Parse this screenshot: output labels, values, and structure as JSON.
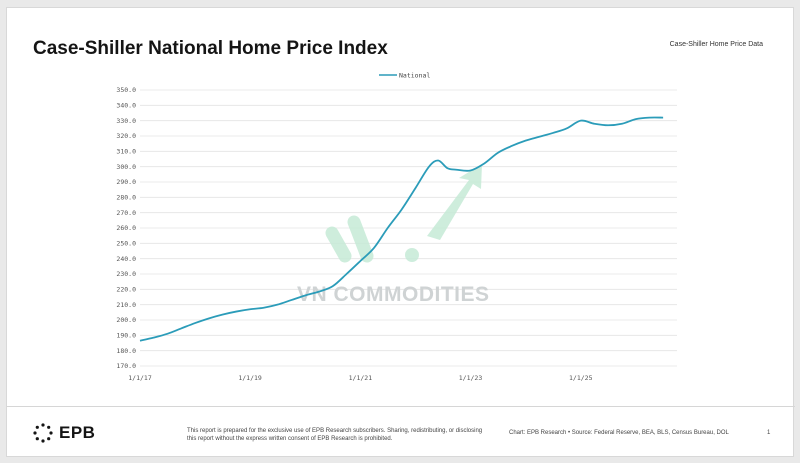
{
  "header": {
    "title": "Case-Shiller National Home Price Index",
    "subtitle": "Case-Shiller Home Price Data"
  },
  "watermark": {
    "text": "VN COMMODITIES"
  },
  "footer": {
    "logo_text": "EPB",
    "disclaimer": "This report is prepared for the exclusive use of EPB Research subscribers. Sharing, redistributing, or disclosing this report without the express written consent of EPB Research is prohibited.",
    "source": "Chart: EPB Research  •  Source: Federal Reserve, BEA, BLS, Census Bureau, DOL",
    "page_number": "1"
  },
  "colors": {
    "line": "#2b9cb9",
    "grid": "#e4e4e4",
    "watermark": "#c6ead7"
  },
  "chart_data": {
    "type": "line",
    "title": "",
    "xlabel": "",
    "ylabel": "",
    "ylim": [
      170,
      350
    ],
    "xlim": [
      "2017-01-01",
      "2026-10-01"
    ],
    "grid": true,
    "legend_position": "top-center",
    "y_ticks": [
      "170.0",
      "180.0",
      "190.0",
      "200.0",
      "210.0",
      "220.0",
      "230.0",
      "240.0",
      "250.0",
      "260.0",
      "270.0",
      "280.0",
      "290.0",
      "300.0",
      "310.0",
      "320.0",
      "330.0",
      "340.0",
      "350.0"
    ],
    "x_ticks": [
      {
        "label": "1/1/17",
        "date": "2017-01-01"
      },
      {
        "label": "1/1/19",
        "date": "2019-01-01"
      },
      {
        "label": "1/1/21",
        "date": "2021-01-01"
      },
      {
        "label": "1/1/23",
        "date": "2023-01-01"
      },
      {
        "label": "1/1/25",
        "date": "2025-01-01"
      }
    ],
    "series": [
      {
        "name": "National",
        "x": [
          "2017-01-01",
          "2017-04-01",
          "2017-07-01",
          "2017-10-01",
          "2018-01-01",
          "2018-04-01",
          "2018-07-01",
          "2018-10-01",
          "2019-01-01",
          "2019-04-01",
          "2019-07-01",
          "2019-10-01",
          "2020-01-01",
          "2020-04-01",
          "2020-07-01",
          "2020-10-01",
          "2021-01-01",
          "2021-04-01",
          "2021-07-01",
          "2021-10-01",
          "2022-01-01",
          "2022-04-01",
          "2022-06-01",
          "2022-08-01",
          "2022-10-01",
          "2023-01-01",
          "2023-04-01",
          "2023-07-01",
          "2023-10-01",
          "2024-01-01",
          "2024-04-01",
          "2024-07-01",
          "2024-10-01",
          "2025-01-01",
          "2025-04-01",
          "2025-07-01",
          "2025-10-01",
          "2026-01-01",
          "2026-04-01",
          "2026-07-01"
        ],
        "values": [
          186.5,
          188.5,
          191,
          194.5,
          198,
          201,
          203.5,
          205.5,
          207,
          208,
          210,
          213,
          216,
          218.5,
          222,
          230,
          238.5,
          247,
          260,
          272,
          286,
          300,
          304,
          299,
          298,
          297.5,
          302,
          309,
          313.5,
          317,
          319.5,
          322,
          325,
          330,
          328,
          327,
          328,
          331,
          332,
          332
        ]
      }
    ]
  }
}
